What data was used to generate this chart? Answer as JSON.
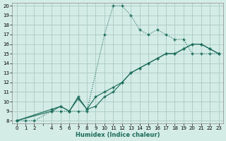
{
  "xlabel": "Humidex (Indice chaleur)",
  "bg_color": "#d4ece6",
  "grid_color": "#aecfc8",
  "line_color": "#1a6b5a",
  "xlim_min": -0.5,
  "xlim_max": 23.5,
  "ylim_min": 7.7,
  "ylim_max": 20.3,
  "xticks": [
    0,
    1,
    2,
    3,
    4,
    5,
    6,
    7,
    8,
    9,
    10,
    11,
    12,
    13,
    14,
    15,
    16,
    17,
    18,
    19,
    20,
    21,
    22,
    23
  ],
  "xtick_labels": [
    "0",
    "1",
    "2",
    "",
    "4",
    "5",
    "6",
    "7",
    "8",
    "9",
    "10",
    "11",
    "12",
    "13",
    "14",
    "15",
    "16",
    "17",
    "18",
    "19",
    "20",
    "21",
    "22",
    "23"
  ],
  "yticks": [
    8,
    9,
    10,
    11,
    12,
    13,
    14,
    15,
    16,
    17,
    18,
    19,
    20
  ],
  "line1_x": [
    0,
    1,
    2,
    4,
    5,
    6,
    7,
    8,
    10,
    11,
    12,
    13,
    14,
    15,
    16,
    17,
    18,
    19,
    20,
    21,
    22,
    23
  ],
  "line1_y": [
    8,
    8,
    8,
    9,
    9,
    9,
    9,
    9,
    17,
    20,
    20,
    19,
    17.5,
    17,
    17.5,
    17,
    16.5,
    16.5,
    15,
    15,
    15,
    15
  ],
  "line2_x": [
    0,
    4,
    5,
    6,
    7,
    8,
    9,
    10,
    11,
    12,
    13,
    14,
    15,
    16,
    17,
    18,
    19,
    20,
    21,
    22,
    23
  ],
  "line2_y": [
    8,
    9,
    9.5,
    9,
    10.5,
    9.2,
    10.5,
    11,
    11.5,
    12,
    13,
    13.5,
    14,
    14.5,
    15,
    15,
    15.5,
    16,
    16,
    15.5,
    15
  ],
  "line3_x": [
    0,
    4,
    5,
    6,
    7,
    8,
    9,
    10,
    11,
    12,
    13,
    14,
    15,
    16,
    17,
    18,
    19,
    20,
    21,
    22,
    23
  ],
  "line3_y": [
    8,
    9.2,
    9.5,
    9,
    10.3,
    9.2,
    9.5,
    10.5,
    11,
    12,
    13,
    13.5,
    14,
    14.5,
    15,
    15,
    15.5,
    16,
    16,
    15.5,
    15
  ]
}
